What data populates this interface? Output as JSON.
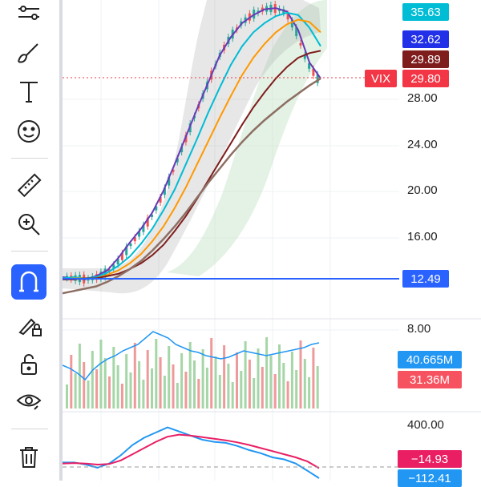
{
  "toolbar": {
    "tools": [
      {
        "name": "trend-tools-icon"
      },
      {
        "name": "brush-icon"
      },
      {
        "name": "text-tool-icon"
      },
      {
        "name": "emoji-icon"
      },
      {
        "name": "ruler-icon"
      },
      {
        "name": "zoom-in-icon"
      },
      {
        "name": "magnet-icon",
        "active": true
      },
      {
        "name": "lock-drawing-icon"
      },
      {
        "name": "unlock-icon"
      },
      {
        "name": "eye-icon"
      },
      {
        "name": "trash-icon"
      }
    ],
    "active_color": "#2962ff"
  },
  "price_axis": {
    "labels": [
      "28.00",
      "24.00",
      "20.00",
      "16.00",
      "8.00"
    ]
  },
  "price_badges": {
    "b1": {
      "value": "35.63",
      "color": "#00bcd4"
    },
    "b2": {
      "value": "32.62",
      "color": "#2230e8"
    },
    "b3": {
      "value": "29.89",
      "color": "#7f1d1d"
    },
    "b4": {
      "symbol": "VIX",
      "value": "29.80",
      "color": "#f23645"
    },
    "b5": {
      "value": "12.49",
      "color": "#2962ff"
    }
  },
  "volume_pane": {
    "badges": {
      "vol_ma": {
        "value": "40.665M",
        "color": "#2196f3"
      },
      "vol": {
        "value": "31.36M",
        "color": "#f7525f"
      }
    }
  },
  "macd_pane": {
    "axis_label": "400.00",
    "badges": {
      "signal": {
        "value": "−14.93",
        "color": "#e91e63"
      },
      "macd": {
        "value": "−112.41",
        "color": "#2196f3"
      }
    }
  },
  "chart_data": {
    "type": "line",
    "series": [
      {
        "values": [
          12.6,
          12.5,
          12.4,
          12.7,
          13.2,
          14.3,
          15.6,
          16.8,
          18.2,
          20.1,
          22.4,
          24.8,
          27.2,
          29.5,
          31.8,
          33.4,
          34.6,
          35.3,
          35.8,
          35.9,
          35.6,
          34.0,
          31.2,
          29.8
        ]
      },
      {
        "values": [
          12.5,
          12.6,
          12.5,
          12.6,
          13.0,
          13.6,
          14.4,
          15.5,
          16.8,
          18.4,
          20.2,
          22.4,
          24.6,
          26.9,
          29.0,
          31.0,
          32.6,
          33.8,
          34.6,
          35.2,
          35.5,
          35.3,
          34.2,
          32.6
        ]
      },
      {
        "values": [
          12.4,
          12.5,
          12.5,
          12.5,
          12.8,
          13.2,
          13.8,
          14.6,
          15.7,
          17.0,
          18.6,
          20.4,
          22.4,
          24.4,
          26.4,
          28.3,
          30.1,
          31.6,
          32.8,
          33.8,
          34.5,
          34.9,
          34.7,
          33.8
        ]
      },
      {
        "values": [
          12.4,
          12.4,
          12.5,
          12.5,
          12.7,
          12.9,
          13.3,
          13.8,
          14.5,
          15.4,
          16.6,
          17.9,
          19.4,
          21.0,
          22.6,
          24.2,
          25.8,
          27.3,
          28.6,
          29.8,
          30.8,
          31.6,
          32.0,
          32.2
        ]
      },
      {
        "values": [
          11.2,
          11.4,
          11.6,
          11.8,
          12.2,
          12.7,
          13.3,
          14.0,
          14.9,
          15.9,
          17.0,
          18.2,
          19.5,
          20.8,
          22.0,
          23.2,
          24.3,
          25.3,
          26.2,
          27.0,
          27.8,
          28.5,
          29.2,
          29.8
        ]
      }
    ],
    "macd": {
      "series": [
        {
          "values": [
            40,
            40,
            20,
            -10,
            30,
            110,
            210,
            280,
            330,
            380,
            340,
            300,
            260,
            240,
            230,
            200,
            160,
            130,
            90,
            70,
            30,
            -40,
            -112
          ]
        },
        {
          "values": [
            30,
            35,
            30,
            20,
            25,
            60,
            120,
            180,
            240,
            290,
            310,
            300,
            285,
            270,
            255,
            235,
            210,
            180,
            150,
            120,
            90,
            50,
            -15
          ]
        }
      ]
    },
    "volume_ma": {
      "values": [
        27,
        25,
        22,
        18,
        24,
        28,
        31,
        33,
        36,
        38,
        40,
        44,
        48,
        46,
        44,
        40,
        38,
        36,
        35,
        33,
        32,
        31,
        32,
        34,
        36,
        35,
        34,
        33,
        34,
        35,
        36,
        37,
        38,
        40,
        41
      ]
    },
    "ylim": [
      8,
      36
    ]
  }
}
